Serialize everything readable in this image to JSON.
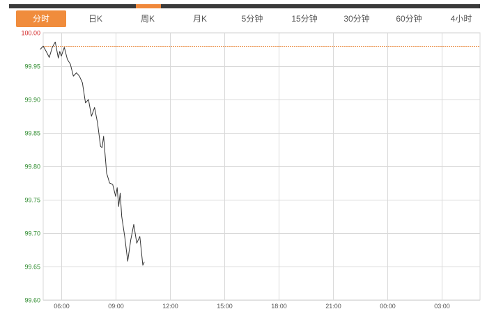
{
  "tabs": [
    {
      "label": "分时",
      "active": true
    },
    {
      "label": "日K",
      "active": false
    },
    {
      "label": "周K",
      "active": false
    },
    {
      "label": "月K",
      "active": false
    },
    {
      "label": "5分钟",
      "active": false
    },
    {
      "label": "15分钟",
      "active": false
    },
    {
      "label": "30分钟",
      "active": false
    },
    {
      "label": "60分钟",
      "active": false
    },
    {
      "label": "4小时",
      "active": false
    }
  ],
  "colors": {
    "accent": "#f08c3c",
    "topbar": "#3a3a3a",
    "line": "#333333",
    "grid": "#d9d9d9",
    "ref_line": "#e8873a",
    "ref_label": "#d22222",
    "ytick": "#2e8b2e",
    "xtick": "#555555"
  },
  "chart_data": {
    "type": "line",
    "title": "",
    "xlabel": "",
    "ylabel": "",
    "x_ticks": [
      "06:00",
      "09:00",
      "12:00",
      "15:00",
      "18:00",
      "21:00",
      "00:00",
      "03:00"
    ],
    "y_ticks": [
      "100.00",
      "99.95",
      "99.90",
      "99.85",
      "99.80",
      "99.75",
      "99.70",
      "99.65",
      "99.60"
    ],
    "ylim": [
      99.6,
      100.0
    ],
    "reference_line": 99.98,
    "grid": true,
    "series": [
      {
        "x": [
          "04:50",
          "05:00",
          "05:10",
          "05:20",
          "05:30",
          "05:40",
          "05:50",
          "05:55",
          "06:00",
          "06:10",
          "06:20",
          "06:30",
          "06:40",
          "06:50",
          "07:00",
          "07:10",
          "07:20",
          "07:30",
          "07:40",
          "07:50",
          "08:00",
          "08:10",
          "08:15",
          "08:20",
          "08:30",
          "08:40",
          "08:50",
          "09:00",
          "09:05",
          "09:10",
          "09:15",
          "09:20",
          "09:30",
          "09:40",
          "09:50",
          "10:00",
          "10:10",
          "10:20",
          "10:30",
          "10:35"
        ],
        "values": [
          99.975,
          99.98,
          99.972,
          99.963,
          99.978,
          99.986,
          99.962,
          99.972,
          99.965,
          99.978,
          99.96,
          99.953,
          99.935,
          99.94,
          99.935,
          99.925,
          99.895,
          99.9,
          99.875,
          99.888,
          99.865,
          99.83,
          99.828,
          99.845,
          99.79,
          99.775,
          99.773,
          99.755,
          99.768,
          99.74,
          99.76,
          99.725,
          99.695,
          99.658,
          99.69,
          99.713,
          99.685,
          99.695,
          99.652,
          99.657
        ]
      }
    ]
  }
}
